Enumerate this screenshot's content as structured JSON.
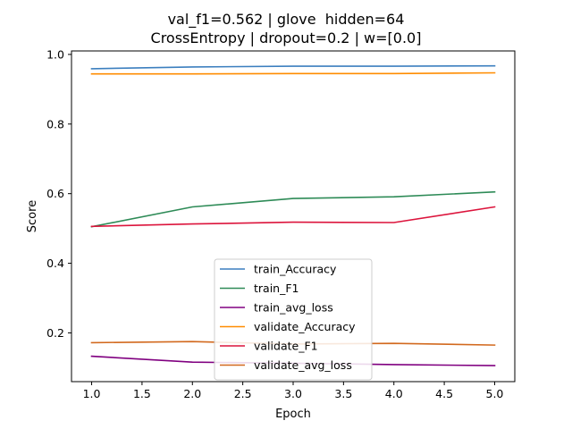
{
  "chart_data": {
    "type": "line",
    "title": "val_f1=0.562 | glove  hidden=64\nCrossEntropy | dropout=0.2 | w=[0.0]",
    "title_lines": [
      "val_f1=0.562 | glove  hidden=64",
      "CrossEntropy | dropout=0.2 | w=[0.0]"
    ],
    "xlabel": "Epoch",
    "ylabel": "Score",
    "x": [
      1.0,
      2.0,
      3.0,
      4.0,
      5.0
    ],
    "xlim": [
      0.8,
      5.2
    ],
    "ylim": [
      0.06,
      1.01
    ],
    "xticks": [
      "1.0",
      "1.5",
      "2.0",
      "2.5",
      "3.0",
      "3.5",
      "4.0",
      "4.5",
      "5.0"
    ],
    "yticks": [
      "0.2",
      "0.4",
      "0.6",
      "0.8",
      "1.0"
    ],
    "grid": false,
    "legend_position": "lower center",
    "series": [
      {
        "name": "train_Accuracy",
        "color": "#3c7fbf",
        "values": [
          0.959,
          0.964,
          0.966,
          0.966,
          0.967
        ]
      },
      {
        "name": "train_F1",
        "color": "#2e8b57",
        "values": [
          0.505,
          0.562,
          0.586,
          0.591,
          0.605
        ]
      },
      {
        "name": "train_avg_loss",
        "color": "#800080",
        "values": [
          0.133,
          0.116,
          0.113,
          0.109,
          0.106
        ]
      },
      {
        "name": "validate_Accuracy",
        "color": "#ff8c00",
        "values": [
          0.944,
          0.944,
          0.945,
          0.945,
          0.947
        ]
      },
      {
        "name": "validate_F1",
        "color": "#dc143c",
        "values": [
          0.506,
          0.513,
          0.518,
          0.517,
          0.562
        ]
      },
      {
        "name": "validate_avg_loss",
        "color": "#d2691e",
        "values": [
          0.172,
          0.175,
          0.168,
          0.17,
          0.165
        ]
      }
    ]
  }
}
